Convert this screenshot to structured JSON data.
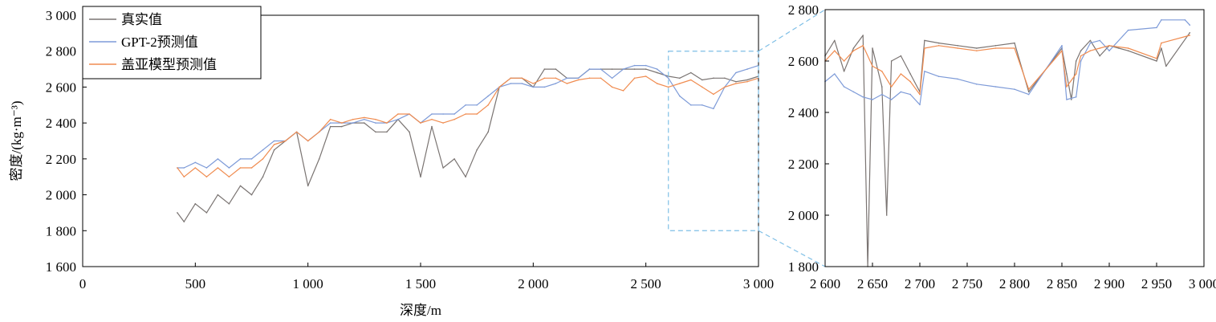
{
  "chart_data": [
    {
      "type": "line",
      "panel": "main",
      "xlabel": "深度/m",
      "ylabel": "密度/(kg·m⁻³)",
      "xlim": [
        0,
        3000
      ],
      "ylim": [
        1600,
        3000
      ],
      "xticks": [
        0,
        500,
        1000,
        1500,
        2000,
        2500,
        3000
      ],
      "xtick_labels": [
        "0",
        "500",
        "1 000",
        "1 500",
        "2 000",
        "2 500",
        "3 000"
      ],
      "yticks": [
        1600,
        1800,
        2000,
        2200,
        2400,
        2600,
        2800,
        3000
      ],
      "ytick_labels": [
        "1 600",
        "1 800",
        "2 000",
        "2 200",
        "2 400",
        "2 600",
        "2 800",
        "3 000"
      ],
      "legend_position": "top-left",
      "grid": false,
      "zoom_box": {
        "x": [
          2600,
          3000
        ],
        "y": [
          1800,
          2800
        ]
      },
      "series": [
        {
          "name": "真实值",
          "color": "#7a7472",
          "x": [
            420,
            450,
            500,
            550,
            600,
            650,
            700,
            750,
            800,
            850,
            900,
            950,
            1000,
            1050,
            1100,
            1150,
            1200,
            1250,
            1300,
            1350,
            1400,
            1450,
            1500,
            1550,
            1600,
            1650,
            1700,
            1750,
            1800,
            1850,
            1900,
            1950,
            2000,
            2050,
            2100,
            2150,
            2200,
            2250,
            2300,
            2350,
            2400,
            2450,
            2500,
            2550,
            2600,
            2650,
            2700,
            2750,
            2800,
            2850,
            2900,
            2950,
            3000
          ],
          "y": [
            1900,
            1850,
            1950,
            1900,
            2000,
            1950,
            2050,
            2000,
            2100,
            2250,
            2300,
            2350,
            2050,
            2200,
            2380,
            2380,
            2400,
            2400,
            2350,
            2350,
            2420,
            2350,
            2100,
            2380,
            2150,
            2200,
            2100,
            2250,
            2350,
            2600,
            2650,
            2650,
            2600,
            2700,
            2700,
            2650,
            2650,
            2700,
            2700,
            2700,
            2700,
            2700,
            2700,
            2680,
            2660,
            2650,
            2680,
            2640,
            2650,
            2650,
            2630,
            2640,
            2660
          ]
        },
        {
          "name": "GPT-2预测值",
          "color": "#7e9bd8",
          "x": [
            420,
            450,
            500,
            550,
            600,
            650,
            700,
            750,
            800,
            850,
            900,
            950,
            1000,
            1050,
            1100,
            1150,
            1200,
            1250,
            1300,
            1350,
            1400,
            1450,
            1500,
            1550,
            1600,
            1650,
            1700,
            1750,
            1800,
            1850,
            1900,
            1950,
            2000,
            2050,
            2100,
            2150,
            2200,
            2250,
            2300,
            2350,
            2400,
            2450,
            2500,
            2550,
            2600,
            2650,
            2700,
            2750,
            2800,
            2850,
            2900,
            2950,
            3000
          ],
          "y": [
            2150,
            2150,
            2180,
            2150,
            2200,
            2150,
            2200,
            2200,
            2250,
            2300,
            2300,
            2350,
            2300,
            2350,
            2400,
            2400,
            2400,
            2420,
            2400,
            2400,
            2420,
            2450,
            2400,
            2450,
            2450,
            2450,
            2500,
            2500,
            2550,
            2600,
            2620,
            2620,
            2600,
            2600,
            2620,
            2650,
            2650,
            2700,
            2700,
            2650,
            2700,
            2720,
            2720,
            2700,
            2650,
            2550,
            2500,
            2500,
            2480,
            2600,
            2680,
            2700,
            2720
          ]
        },
        {
          "name": "盖亚模型预测值",
          "color": "#f08c50",
          "x": [
            420,
            450,
            500,
            550,
            600,
            650,
            700,
            750,
            800,
            850,
            900,
            950,
            1000,
            1050,
            1100,
            1150,
            1200,
            1250,
            1300,
            1350,
            1400,
            1450,
            1500,
            1550,
            1600,
            1650,
            1700,
            1750,
            1800,
            1850,
            1900,
            1950,
            2000,
            2050,
            2100,
            2150,
            2200,
            2250,
            2300,
            2350,
            2400,
            2450,
            2500,
            2550,
            2600,
            2650,
            2700,
            2750,
            2800,
            2850,
            2900,
            2950,
            3000
          ],
          "y": [
            2150,
            2100,
            2150,
            2100,
            2150,
            2100,
            2150,
            2150,
            2200,
            2280,
            2300,
            2350,
            2300,
            2350,
            2420,
            2400,
            2420,
            2430,
            2420,
            2400,
            2450,
            2450,
            2400,
            2420,
            2400,
            2420,
            2450,
            2450,
            2500,
            2600,
            2650,
            2650,
            2620,
            2650,
            2650,
            2620,
            2640,
            2650,
            2650,
            2600,
            2580,
            2650,
            2660,
            2620,
            2600,
            2620,
            2640,
            2600,
            2560,
            2600,
            2620,
            2630,
            2650
          ]
        }
      ]
    },
    {
      "type": "line",
      "panel": "zoom",
      "xlabel": "",
      "ylabel": "",
      "xlim": [
        2600,
        3000
      ],
      "ylim": [
        1800,
        2800
      ],
      "xticks": [
        2600,
        2650,
        2700,
        2750,
        2800,
        2850,
        2900,
        2950,
        3000
      ],
      "xtick_labels": [
        "2 600",
        "2 650",
        "2 700",
        "2 750",
        "2 800",
        "2 850",
        "2 900",
        "2 950",
        "3 000"
      ],
      "yticks": [
        1800,
        2000,
        2200,
        2400,
        2600,
        2800
      ],
      "ytick_labels": [
        "1 800",
        "2 000",
        "2 200",
        "2 400",
        "2 600",
        "2 800"
      ],
      "grid": false,
      "series": [
        {
          "name": "真实值",
          "color": "#7a7472",
          "x": [
            2600,
            2610,
            2620,
            2630,
            2640,
            2645,
            2650,
            2660,
            2665,
            2670,
            2680,
            2690,
            2700,
            2705,
            2720,
            2740,
            2760,
            2780,
            2800,
            2815,
            2850,
            2855,
            2860,
            2865,
            2870,
            2880,
            2890,
            2900,
            2910,
            2920,
            2950,
            2955,
            2960,
            2985
          ],
          "y": [
            2620,
            2680,
            2560,
            2650,
            2700,
            1800,
            2650,
            2500,
            2000,
            2600,
            2620,
            2550,
            2480,
            2680,
            2670,
            2660,
            2650,
            2660,
            2670,
            2480,
            2650,
            2550,
            2450,
            2600,
            2640,
            2680,
            2620,
            2660,
            2650,
            2640,
            2600,
            2650,
            2580,
            2710
          ]
        },
        {
          "name": "GPT-2预测值",
          "color": "#7e9bd8",
          "x": [
            2600,
            2610,
            2620,
            2630,
            2640,
            2650,
            2660,
            2670,
            2680,
            2690,
            2700,
            2705,
            2720,
            2740,
            2760,
            2780,
            2800,
            2815,
            2850,
            2855,
            2865,
            2870,
            2880,
            2890,
            2900,
            2920,
            2950,
            2955,
            2980,
            2985
          ],
          "y": [
            2520,
            2550,
            2500,
            2480,
            2460,
            2450,
            2470,
            2450,
            2480,
            2470,
            2430,
            2560,
            2540,
            2530,
            2510,
            2500,
            2490,
            2470,
            2660,
            2450,
            2460,
            2600,
            2670,
            2680,
            2640,
            2720,
            2730,
            2760,
            2760,
            2740
          ]
        },
        {
          "name": "盖亚模型预测值",
          "color": "#f08c50",
          "x": [
            2600,
            2610,
            2620,
            2630,
            2640,
            2650,
            2660,
            2670,
            2680,
            2690,
            2700,
            2705,
            2720,
            2740,
            2760,
            2780,
            2800,
            2815,
            2850,
            2855,
            2865,
            2870,
            2880,
            2890,
            2900,
            2920,
            2950,
            2955,
            2985
          ],
          "y": [
            2600,
            2640,
            2600,
            2640,
            2660,
            2580,
            2560,
            2500,
            2550,
            2520,
            2470,
            2650,
            2660,
            2650,
            2640,
            2650,
            2650,
            2490,
            2640,
            2500,
            2550,
            2620,
            2640,
            2650,
            2660,
            2650,
            2610,
            2670,
            2700
          ]
        }
      ]
    }
  ]
}
